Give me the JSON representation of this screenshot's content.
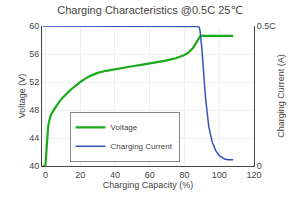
{
  "chart_data": {
    "type": "line",
    "title": "Charging Characteristics @0.5C 25℃",
    "x_label": "Charging Capacity (%)",
    "y_label": "Voltage (V)",
    "y2_label": "Charging Current (A)",
    "xlim": [
      -2,
      120
    ],
    "ylim": [
      40.0,
      60.0
    ],
    "y2lim": [
      0,
      0.5
    ],
    "xticks": [
      0,
      20,
      40,
      60,
      80,
      100,
      120
    ],
    "yticks": [
      40,
      44,
      48,
      52,
      56,
      60
    ],
    "y2ticks": [
      0,
      {
        "value": 0.5,
        "label": "0.5C"
      }
    ],
    "grid": true,
    "legend": "lower left",
    "series": [
      {
        "name": "Voltage",
        "color": "#1aaa1a",
        "x": [
          -1.5,
          -0.5,
          0.0,
          0.3,
          0.6,
          1.0,
          1.5,
          2.0,
          2.5,
          3.0,
          4.0,
          5.0,
          6.0,
          7.0,
          8.0,
          10.0,
          12.0,
          15.0,
          18.0,
          20.0,
          25.0,
          30.0,
          35.0,
          40.0,
          45.0,
          50.0,
          55.0,
          60.0,
          65.0,
          70.0,
          75.0,
          78.0,
          80.0,
          82.0,
          84.0,
          85.0,
          86.0,
          87.0,
          87.5,
          88.0,
          89.0,
          90.0,
          92.0,
          95.0,
          100.0,
          105.0,
          108.0
        ],
        "values": [
          40.0,
          40.0,
          40.2,
          41.5,
          43.0,
          44.5,
          45.5,
          46.3,
          46.8,
          47.2,
          47.7,
          48.1,
          48.5,
          48.9,
          49.2,
          49.8,
          50.3,
          51.0,
          51.6,
          52.0,
          52.8,
          53.3,
          53.6,
          53.85,
          54.05,
          54.25,
          54.45,
          54.65,
          54.85,
          55.1,
          55.4,
          55.65,
          55.85,
          56.15,
          56.6,
          56.9,
          57.3,
          57.7,
          57.9,
          58.2,
          58.5,
          58.58,
          58.6,
          58.6,
          58.6,
          58.6,
          58.6
        ]
      },
      {
        "name": "Charging Current",
        "color": "#3355bb",
        "axis": "y2",
        "x": [
          -1.5,
          0.0,
          1.0,
          5.0,
          10.0,
          20.0,
          40.0,
          60.0,
          80.0,
          85.0,
          87.0,
          88.0,
          88.5,
          89.0,
          90.0,
          91.0,
          92.0,
          94.0,
          96.0,
          98.0,
          100.0,
          103.0,
          105.0,
          108.0
        ],
        "values": [
          0.5,
          0.5,
          0.5,
          0.5,
          0.5,
          0.5,
          0.5,
          0.5,
          0.5,
          0.5,
          0.5,
          0.498,
          0.495,
          0.48,
          0.42,
          0.33,
          0.25,
          0.14,
          0.085,
          0.055,
          0.038,
          0.025,
          0.022,
          0.022
        ]
      }
    ]
  }
}
